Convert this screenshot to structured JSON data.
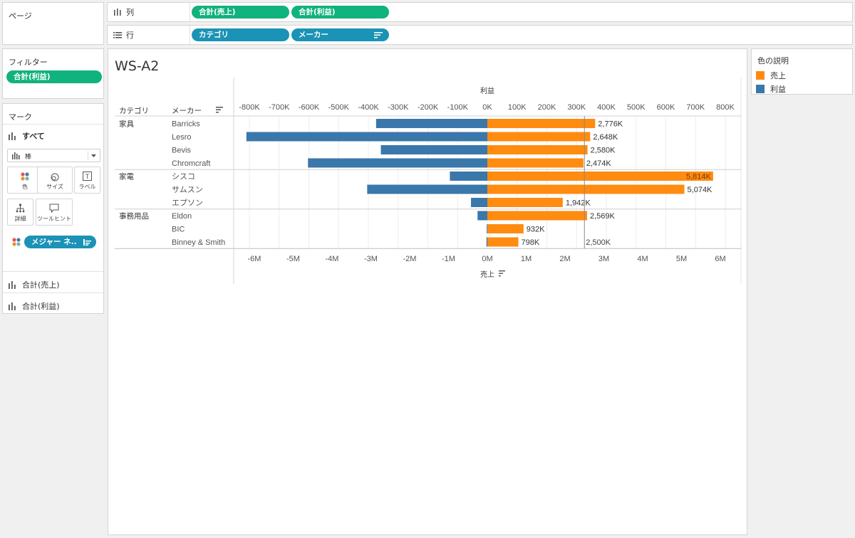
{
  "shelves": {
    "pages_label": "ページ",
    "columns_label": "列",
    "rows_label": "行",
    "columns_pills": [
      "合計(売上)",
      "合計(利益)"
    ],
    "rows_pills": [
      "カテゴリ",
      "メーカー"
    ]
  },
  "filters": {
    "title": "フィルター",
    "pills": [
      "合計(利益)"
    ]
  },
  "marks": {
    "title": "マーク",
    "all_label": "すべて",
    "mark_type": "棒",
    "buttons": [
      {
        "label": "色",
        "icon": "color-icon"
      },
      {
        "label": "サイズ",
        "icon": "size-icon"
      },
      {
        "label": "ラベル",
        "icon": "label-icon"
      },
      {
        "label": "詳細",
        "icon": "detail-icon"
      },
      {
        "label": "ツールヒント",
        "icon": "tooltip-icon"
      }
    ],
    "measure_pill": "メジャー ネ..",
    "sections": [
      "合計(売上)",
      "合計(利益)"
    ]
  },
  "legend": {
    "title": "色の説明",
    "items": [
      {
        "label": "売上",
        "color": "#ff8b10"
      },
      {
        "label": "利益",
        "color": "#3a77ab"
      }
    ]
  },
  "worksheet": {
    "title": "WS-A2",
    "col_header_category": "カテゴリ",
    "col_header_maker": "メーカー"
  },
  "chart_data": {
    "type": "bar",
    "top_axis": {
      "title": "利益",
      "range": [
        -850,
        850
      ],
      "unit": "K",
      "ticks": [
        "-800K",
        "-700K",
        "-600K",
        "-500K",
        "-400K",
        "-300K",
        "-200K",
        "-100K",
        "0K",
        "100K",
        "200K",
        "300K",
        "400K",
        "500K",
        "600K",
        "700K",
        "800K"
      ]
    },
    "bottom_axis": {
      "title": "売上",
      "range": [
        -6.45,
        6.45
      ],
      "unit": "M",
      "ticks": [
        "-6M",
        "-5M",
        "-4M",
        "-3M",
        "-2M",
        "-1M",
        "0M",
        "1M",
        "2M",
        "3M",
        "4M",
        "5M",
        "6M"
      ]
    },
    "reference_line": {
      "value": 2.5,
      "unit": "M",
      "label": "2,500K"
    },
    "groups": [
      {
        "category": "家具",
        "rows": [
          {
            "maker": "Barricks",
            "sales": 2776,
            "profit": -374,
            "sales_label": "2,776K"
          },
          {
            "maker": "Lesro",
            "sales": 2648,
            "profit": -810,
            "sales_label": "2,648K"
          },
          {
            "maker": "Bevis",
            "sales": 2580,
            "profit": -358,
            "sales_label": "2,580K"
          },
          {
            "maker": "Chromcraft",
            "sales": 2474,
            "profit": -603,
            "sales_label": "2,474K"
          }
        ]
      },
      {
        "category": "家電",
        "rows": [
          {
            "maker": "シスコ",
            "sales": 5814,
            "profit": -126,
            "sales_label": "5,814K"
          },
          {
            "maker": "サムスン",
            "sales": 5074,
            "profit": -404,
            "sales_label": "5,074K"
          },
          {
            "maker": "エプソン",
            "sales": 1942,
            "profit": -55,
            "sales_label": "1,942K"
          }
        ]
      },
      {
        "category": "事務用品",
        "rows": [
          {
            "maker": "Eldon",
            "sales": 2569,
            "profit": -33,
            "sales_label": "2,569K"
          },
          {
            "maker": "BIC",
            "sales": 932,
            "profit": -2,
            "sales_label": "932K"
          },
          {
            "maker": "Binney & Smith",
            "sales": 798,
            "profit": -3,
            "sales_label": "798K"
          }
        ]
      }
    ],
    "series": [
      {
        "name": "売上",
        "color": "#ff8b10"
      },
      {
        "name": "利益",
        "color": "#3a77ab"
      }
    ]
  }
}
